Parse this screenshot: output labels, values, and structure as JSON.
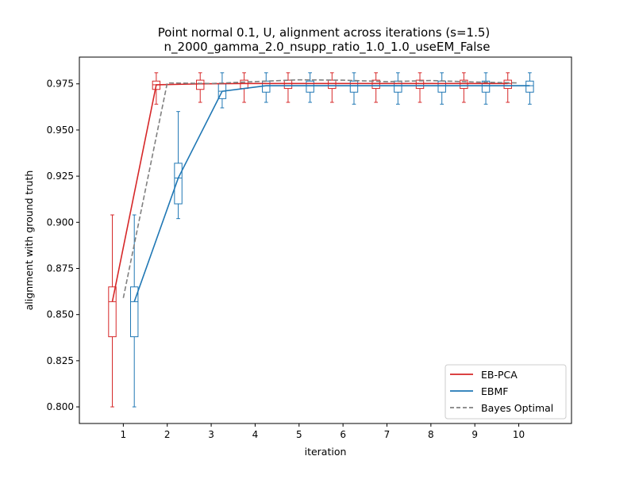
{
  "chart_data": {
    "type": "box_line",
    "title": "Point normal 0.1, U, alignment across iterations (s=1.5)",
    "subtitle": "n_2000_gamma_2.0_nsupp_ratio_1.0_1.0_useEM_False",
    "xlabel": "iteration",
    "ylabel": "alignment with ground truth",
    "xlim": [
      0,
      11.2
    ],
    "ylim": [
      0.791,
      0.9895
    ],
    "xticks": [
      "1",
      "2",
      "3",
      "4",
      "5",
      "6",
      "7",
      "8",
      "9",
      "10"
    ],
    "yticks": [
      "0.800",
      "0.825",
      "0.850",
      "0.875",
      "0.900",
      "0.925",
      "0.950",
      "0.975"
    ],
    "legend_position": "lower-right",
    "series": [
      {
        "name": "EB-PCA",
        "color": "#d62728",
        "offset": -0.25,
        "iterations": [
          1,
          2,
          3,
          4,
          5,
          6,
          7,
          8,
          9,
          10
        ],
        "median": [
          0.857,
          0.9745,
          0.975,
          0.9752,
          0.9752,
          0.9752,
          0.9752,
          0.9752,
          0.9752,
          0.9752
        ],
        "q1": [
          0.838,
          0.972,
          0.972,
          0.9725,
          0.9725,
          0.9725,
          0.9725,
          0.9725,
          0.9725,
          0.9725
        ],
        "q3": [
          0.865,
          0.9765,
          0.977,
          0.977,
          0.977,
          0.977,
          0.977,
          0.977,
          0.977,
          0.977
        ],
        "whisker_low": [
          0.8,
          0.964,
          0.965,
          0.965,
          0.965,
          0.965,
          0.965,
          0.965,
          0.965,
          0.965
        ],
        "whisker_high": [
          0.904,
          0.981,
          0.981,
          0.981,
          0.981,
          0.981,
          0.981,
          0.981,
          0.981,
          0.981
        ]
      },
      {
        "name": "EBMF",
        "color": "#1f77b4",
        "offset": 0.25,
        "iterations": [
          1,
          2,
          3,
          4,
          5,
          6,
          7,
          8,
          9,
          10
        ],
        "median": [
          0.857,
          0.924,
          0.971,
          0.974,
          0.974,
          0.974,
          0.974,
          0.974,
          0.974,
          0.974
        ],
        "q1": [
          0.838,
          0.91,
          0.967,
          0.9705,
          0.9705,
          0.9705,
          0.9705,
          0.9705,
          0.9705,
          0.9705
        ],
        "q3": [
          0.865,
          0.932,
          0.975,
          0.9765,
          0.9765,
          0.9765,
          0.9765,
          0.9765,
          0.9765,
          0.9765
        ],
        "whisker_low": [
          0.8,
          0.902,
          0.962,
          0.965,
          0.965,
          0.964,
          0.964,
          0.964,
          0.964,
          0.964
        ],
        "whisker_high": [
          0.904,
          0.96,
          0.981,
          0.981,
          0.981,
          0.981,
          0.981,
          0.981,
          0.981,
          0.981
        ]
      }
    ],
    "reference_line": {
      "name": "Bayes Optimal",
      "color": "#808080",
      "style": "dashed",
      "x": [
        1,
        2,
        3,
        4,
        5,
        6,
        7,
        8,
        9,
        10
      ],
      "y": [
        0.859,
        0.9755,
        0.9752,
        0.9762,
        0.9772,
        0.977,
        0.9762,
        0.9768,
        0.976,
        0.9755
      ]
    }
  }
}
